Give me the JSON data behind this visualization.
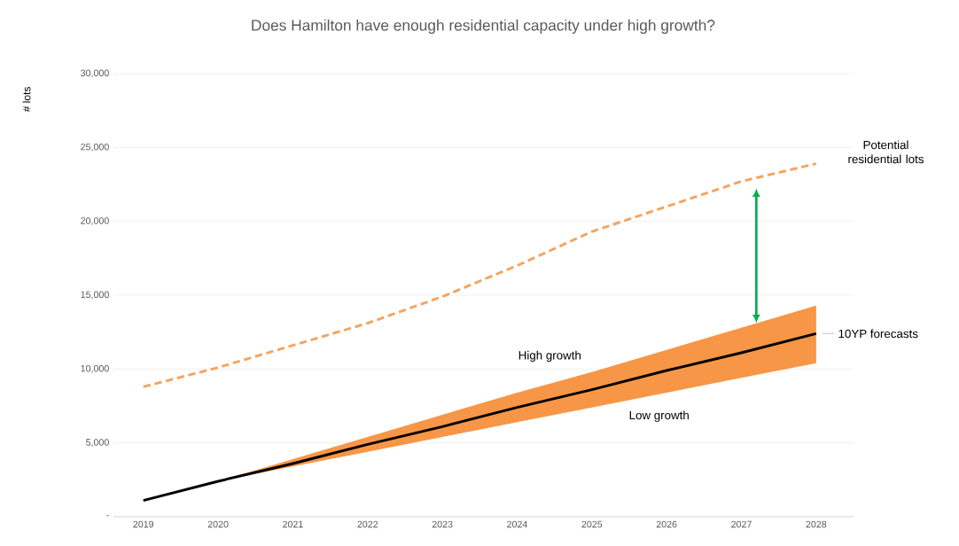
{
  "chart_data": {
    "type": "line",
    "title": "Does Hamilton have enough residential capacity under high growth?",
    "ylabel": "# lots",
    "x": [
      2019,
      2020,
      2021,
      2022,
      2023,
      2024,
      2025,
      2026,
      2027,
      2028
    ],
    "xlim": [
      2018.6,
      2028.5
    ],
    "xticks": [
      2019,
      2020,
      2021,
      2022,
      2023,
      2024,
      2025,
      2026,
      2027,
      2028
    ],
    "ylim": [
      0,
      30000
    ],
    "yticks": [
      {
        "value": 0,
        "label": "-"
      },
      {
        "value": 5000,
        "label": "5,000"
      },
      {
        "value": 10000,
        "label": "10,000"
      },
      {
        "value": 15000,
        "label": "15,000"
      },
      {
        "value": 20000,
        "label": "20,000"
      },
      {
        "value": 25000,
        "label": "25,000"
      },
      {
        "value": 30000,
        "label": "30,000"
      }
    ],
    "grid": "y",
    "marker": "none",
    "series": [
      {
        "name": "10YP forecasts",
        "color": "#000000",
        "line_style": "solid",
        "values": [
          1100,
          2400,
          3600,
          4900,
          6100,
          7400,
          8600,
          9900,
          11100,
          12400
        ],
        "lower": [
          null,
          2400,
          3400,
          4400,
          5400,
          6400,
          7400,
          8400,
          9400,
          10400
        ],
        "upper": [
          null,
          2400,
          3900,
          5400,
          6900,
          8400,
          9800,
          11300,
          12800,
          14300
        ]
      },
      {
        "name": "Potential residential lots",
        "color": "#f4a460",
        "line_style": "dashed",
        "values": [
          8800,
          10100,
          11600,
          13100,
          14900,
          17000,
          19300,
          21000,
          22700,
          23900
        ]
      }
    ],
    "annotations": [
      "High growth",
      "Low growth"
    ]
  }
}
